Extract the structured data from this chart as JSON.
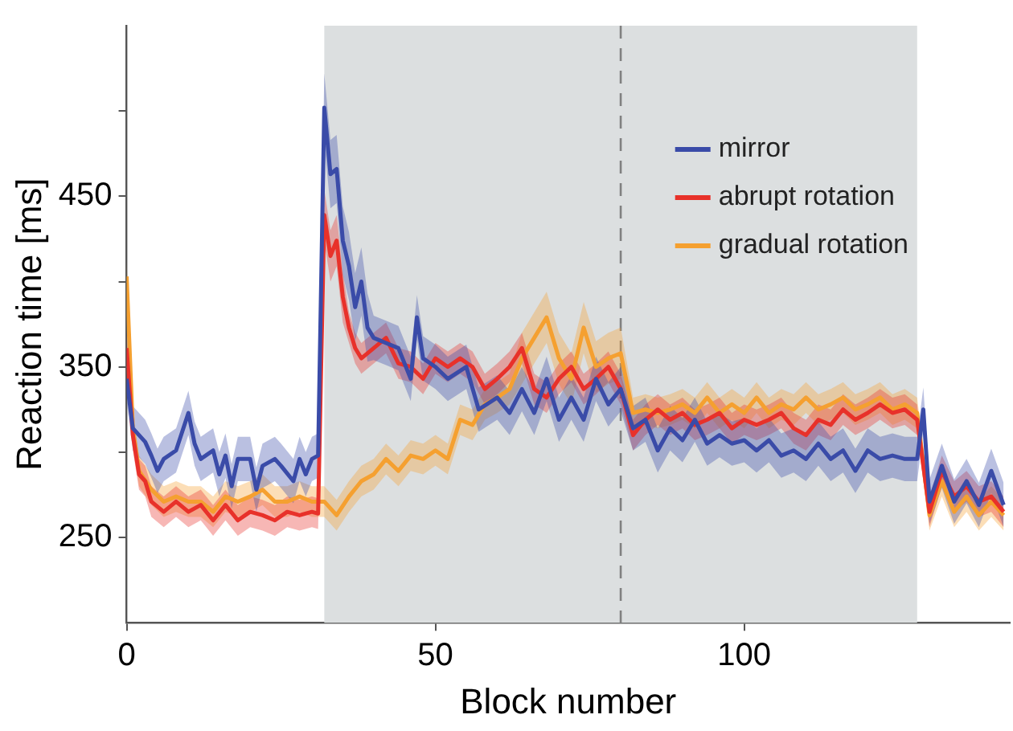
{
  "chart_data": {
    "type": "line",
    "xlabel": "Block number",
    "ylabel": "Reaction time [ms]",
    "xlim": [
      0,
      143
    ],
    "xticks": [
      0,
      50,
      100
    ],
    "ylim": [
      200,
      550
    ],
    "yticks": [
      250,
      {
        "value": 300,
        "label": null
      },
      350,
      {
        "value": 400,
        "label": null
      },
      450,
      {
        "value": 500,
        "label": null
      }
    ],
    "grid": false,
    "legend": "top right",
    "marker": "none",
    "line_style": "solid",
    "bands": [
      {
        "axis": "x",
        "from": 32,
        "to": 128,
        "color": "#dcdfe0"
      }
    ],
    "ref_lines": [
      {
        "axis": "x",
        "value": 80,
        "color": "#808080",
        "line_style": "dashed"
      }
    ],
    "series": [
      {
        "name": "mirror",
        "color": "#3a4ba8",
        "x": [
          0,
          1,
          2,
          3,
          4,
          5,
          6,
          8,
          10,
          11,
          12,
          14,
          15,
          16,
          17,
          18,
          20,
          21,
          22,
          24,
          25,
          27,
          28,
          29,
          30,
          31,
          32,
          33,
          34,
          35,
          36,
          37,
          38,
          39,
          40,
          42,
          44,
          46,
          47,
          48,
          50,
          52,
          55,
          57,
          60,
          62,
          64,
          66,
          68,
          70,
          72,
          74,
          76,
          78,
          80,
          82,
          84,
          86,
          88,
          90,
          92,
          94,
          96,
          98,
          100,
          102,
          104,
          106,
          108,
          110,
          112,
          114,
          116,
          118,
          120,
          122,
          124,
          126,
          128,
          129,
          130,
          132,
          134,
          136,
          138,
          140,
          142
        ],
        "values": [
          343,
          314,
          310,
          306,
          298,
          289,
          296,
          301,
          323,
          305,
          296,
          301,
          287,
          298,
          280,
          296,
          296,
          278,
          292,
          296,
          292,
          283,
          296,
          287,
          296,
          298,
          502,
          463,
          466,
          424,
          409,
          385,
          400,
          373,
          367,
          364,
          361,
          343,
          379,
          355,
          350,
          343,
          350,
          325,
          332,
          323,
          337,
          323,
          343,
          319,
          332,
          319,
          343,
          328,
          337,
          314,
          319,
          301,
          314,
          307,
          319,
          305,
          310,
          305,
          307,
          301,
          307,
          298,
          301,
          296,
          305,
          296,
          301,
          289,
          301,
          296,
          298,
          296,
          296,
          325,
          271,
          292,
          271,
          283,
          269,
          289,
          269
        ],
        "lower": [
          330,
          301,
          297,
          293,
          285,
          276,
          283,
          288,
          310,
          292,
          283,
          288,
          274,
          285,
          267,
          283,
          283,
          265,
          279,
          283,
          279,
          270,
          283,
          274,
          283,
          285,
          482,
          443,
          446,
          404,
          389,
          365,
          380,
          353,
          354,
          351,
          348,
          330,
          366,
          342,
          337,
          330,
          337,
          312,
          319,
          310,
          324,
          310,
          330,
          306,
          319,
          306,
          330,
          315,
          324,
          301,
          306,
          288,
          301,
          294,
          306,
          292,
          297,
          292,
          294,
          288,
          294,
          285,
          288,
          283,
          292,
          283,
          288,
          276,
          288,
          283,
          285,
          283,
          283,
          312,
          258,
          279,
          258,
          270,
          256,
          276,
          256
        ],
        "upper": [
          356,
          327,
          323,
          319,
          311,
          302,
          309,
          314,
          336,
          318,
          309,
          314,
          300,
          311,
          293,
          309,
          309,
          291,
          305,
          309,
          305,
          296,
          309,
          300,
          309,
          311,
          522,
          483,
          486,
          444,
          429,
          405,
          420,
          393,
          380,
          377,
          374,
          356,
          392,
          368,
          363,
          356,
          363,
          338,
          345,
          336,
          350,
          336,
          356,
          332,
          345,
          332,
          356,
          341,
          350,
          327,
          332,
          314,
          327,
          320,
          332,
          318,
          323,
          318,
          320,
          314,
          320,
          311,
          314,
          309,
          318,
          309,
          314,
          302,
          314,
          309,
          311,
          309,
          309,
          338,
          284,
          305,
          284,
          296,
          282,
          302,
          282
        ]
      },
      {
        "name": "abrupt rotation",
        "color": "#e8312a",
        "x": [
          0,
          1,
          2,
          3,
          4,
          6,
          8,
          10,
          12,
          14,
          16,
          18,
          20,
          22,
          24,
          26,
          28,
          30,
          31,
          32,
          33,
          34,
          35,
          36,
          37,
          38,
          40,
          42,
          44,
          46,
          48,
          50,
          52,
          54,
          56,
          58,
          60,
          62,
          64,
          66,
          68,
          70,
          72,
          74,
          76,
          78,
          80,
          82,
          84,
          86,
          88,
          90,
          92,
          94,
          96,
          98,
          100,
          102,
          104,
          106,
          108,
          110,
          112,
          114,
          116,
          118,
          120,
          122,
          124,
          126,
          128,
          130,
          132,
          134,
          136,
          138,
          140,
          142
        ],
        "values": [
          361,
          310,
          287,
          283,
          271,
          265,
          271,
          265,
          269,
          260,
          269,
          260,
          265,
          263,
          260,
          265,
          263,
          265,
          264,
          439,
          415,
          424,
          391,
          373,
          361,
          355,
          361,
          367,
          352,
          350,
          343,
          355,
          350,
          355,
          350,
          337,
          343,
          350,
          361,
          337,
          332,
          343,
          350,
          337,
          343,
          350,
          337,
          310,
          319,
          325,
          319,
          323,
          316,
          319,
          323,
          314,
          319,
          316,
          319,
          323,
          314,
          310,
          319,
          316,
          325,
          319,
          323,
          328,
          323,
          325,
          319,
          265,
          289,
          274,
          280,
          271,
          274,
          265
        ],
        "lower": [
          352,
          301,
          278,
          274,
          262,
          256,
          262,
          256,
          260,
          251,
          260,
          251,
          256,
          254,
          251,
          256,
          254,
          256,
          255,
          424,
          400,
          409,
          376,
          364,
          352,
          346,
          352,
          358,
          343,
          341,
          334,
          346,
          341,
          346,
          341,
          328,
          334,
          341,
          352,
          328,
          323,
          334,
          341,
          328,
          334,
          341,
          328,
          301,
          310,
          316,
          310,
          314,
          307,
          310,
          314,
          305,
          310,
          307,
          310,
          314,
          305,
          301,
          310,
          307,
          316,
          310,
          314,
          319,
          314,
          316,
          310,
          256,
          280,
          265,
          271,
          262,
          265,
          256
        ],
        "upper": [
          370,
          319,
          296,
          292,
          280,
          274,
          280,
          274,
          278,
          269,
          278,
          269,
          274,
          272,
          269,
          274,
          272,
          274,
          273,
          454,
          430,
          439,
          406,
          382,
          370,
          364,
          370,
          376,
          361,
          359,
          352,
          364,
          359,
          364,
          359,
          346,
          352,
          359,
          370,
          346,
          341,
          352,
          359,
          346,
          352,
          359,
          346,
          319,
          328,
          334,
          328,
          332,
          325,
          328,
          332,
          323,
          328,
          325,
          328,
          332,
          323,
          319,
          328,
          325,
          334,
          328,
          332,
          337,
          332,
          334,
          328,
          274,
          298,
          283,
          289,
          280,
          283,
          274
        ]
      },
      {
        "name": "gradual rotation",
        "color": "#f5a030",
        "x": [
          0,
          1,
          2,
          4,
          6,
          8,
          10,
          12,
          14,
          16,
          18,
          20,
          22,
          24,
          26,
          28,
          30,
          32,
          34,
          36,
          38,
          40,
          42,
          44,
          46,
          48,
          50,
          52,
          54,
          56,
          58,
          60,
          62,
          64,
          66,
          68,
          70,
          72,
          74,
          76,
          78,
          80,
          82,
          84,
          86,
          88,
          90,
          92,
          94,
          96,
          98,
          100,
          102,
          104,
          106,
          108,
          110,
          112,
          114,
          116,
          118,
          120,
          122,
          124,
          126,
          128,
          130,
          132,
          134,
          136,
          138,
          140,
          142
        ],
        "values": [
          403,
          314,
          289,
          278,
          271,
          274,
          271,
          271,
          265,
          274,
          271,
          274,
          278,
          271,
          271,
          274,
          271,
          271,
          263,
          274,
          283,
          287,
          296,
          289,
          298,
          296,
          301,
          296,
          319,
          316,
          328,
          332,
          337,
          355,
          367,
          379,
          355,
          343,
          373,
          350,
          355,
          358,
          323,
          325,
          323,
          325,
          328,
          323,
          332,
          323,
          328,
          323,
          332,
          323,
          328,
          325,
          332,
          325,
          328,
          332,
          325,
          328,
          332,
          325,
          328,
          323,
          263,
          283,
          265,
          274,
          263,
          271,
          263
        ],
        "lower": [
          394,
          305,
          280,
          269,
          262,
          265,
          262,
          262,
          256,
          265,
          262,
          265,
          269,
          262,
          262,
          265,
          262,
          262,
          254,
          265,
          274,
          278,
          287,
          280,
          289,
          287,
          292,
          287,
          310,
          307,
          319,
          323,
          328,
          340,
          352,
          364,
          340,
          328,
          358,
          335,
          340,
          343,
          314,
          316,
          314,
          316,
          319,
          314,
          323,
          314,
          319,
          314,
          323,
          314,
          319,
          316,
          323,
          316,
          319,
          323,
          316,
          319,
          323,
          316,
          319,
          314,
          254,
          274,
          256,
          265,
          254,
          262,
          254
        ],
        "upper": [
          412,
          323,
          298,
          287,
          280,
          283,
          280,
          280,
          274,
          283,
          280,
          283,
          287,
          280,
          280,
          283,
          280,
          280,
          272,
          283,
          292,
          296,
          305,
          298,
          307,
          305,
          310,
          305,
          328,
          325,
          337,
          341,
          346,
          370,
          382,
          394,
          370,
          358,
          388,
          365,
          370,
          373,
          332,
          334,
          332,
          334,
          337,
          332,
          341,
          332,
          337,
          332,
          341,
          332,
          337,
          334,
          341,
          334,
          337,
          341,
          334,
          337,
          341,
          334,
          337,
          332,
          272,
          292,
          274,
          283,
          272,
          280,
          272
        ]
      }
    ]
  }
}
